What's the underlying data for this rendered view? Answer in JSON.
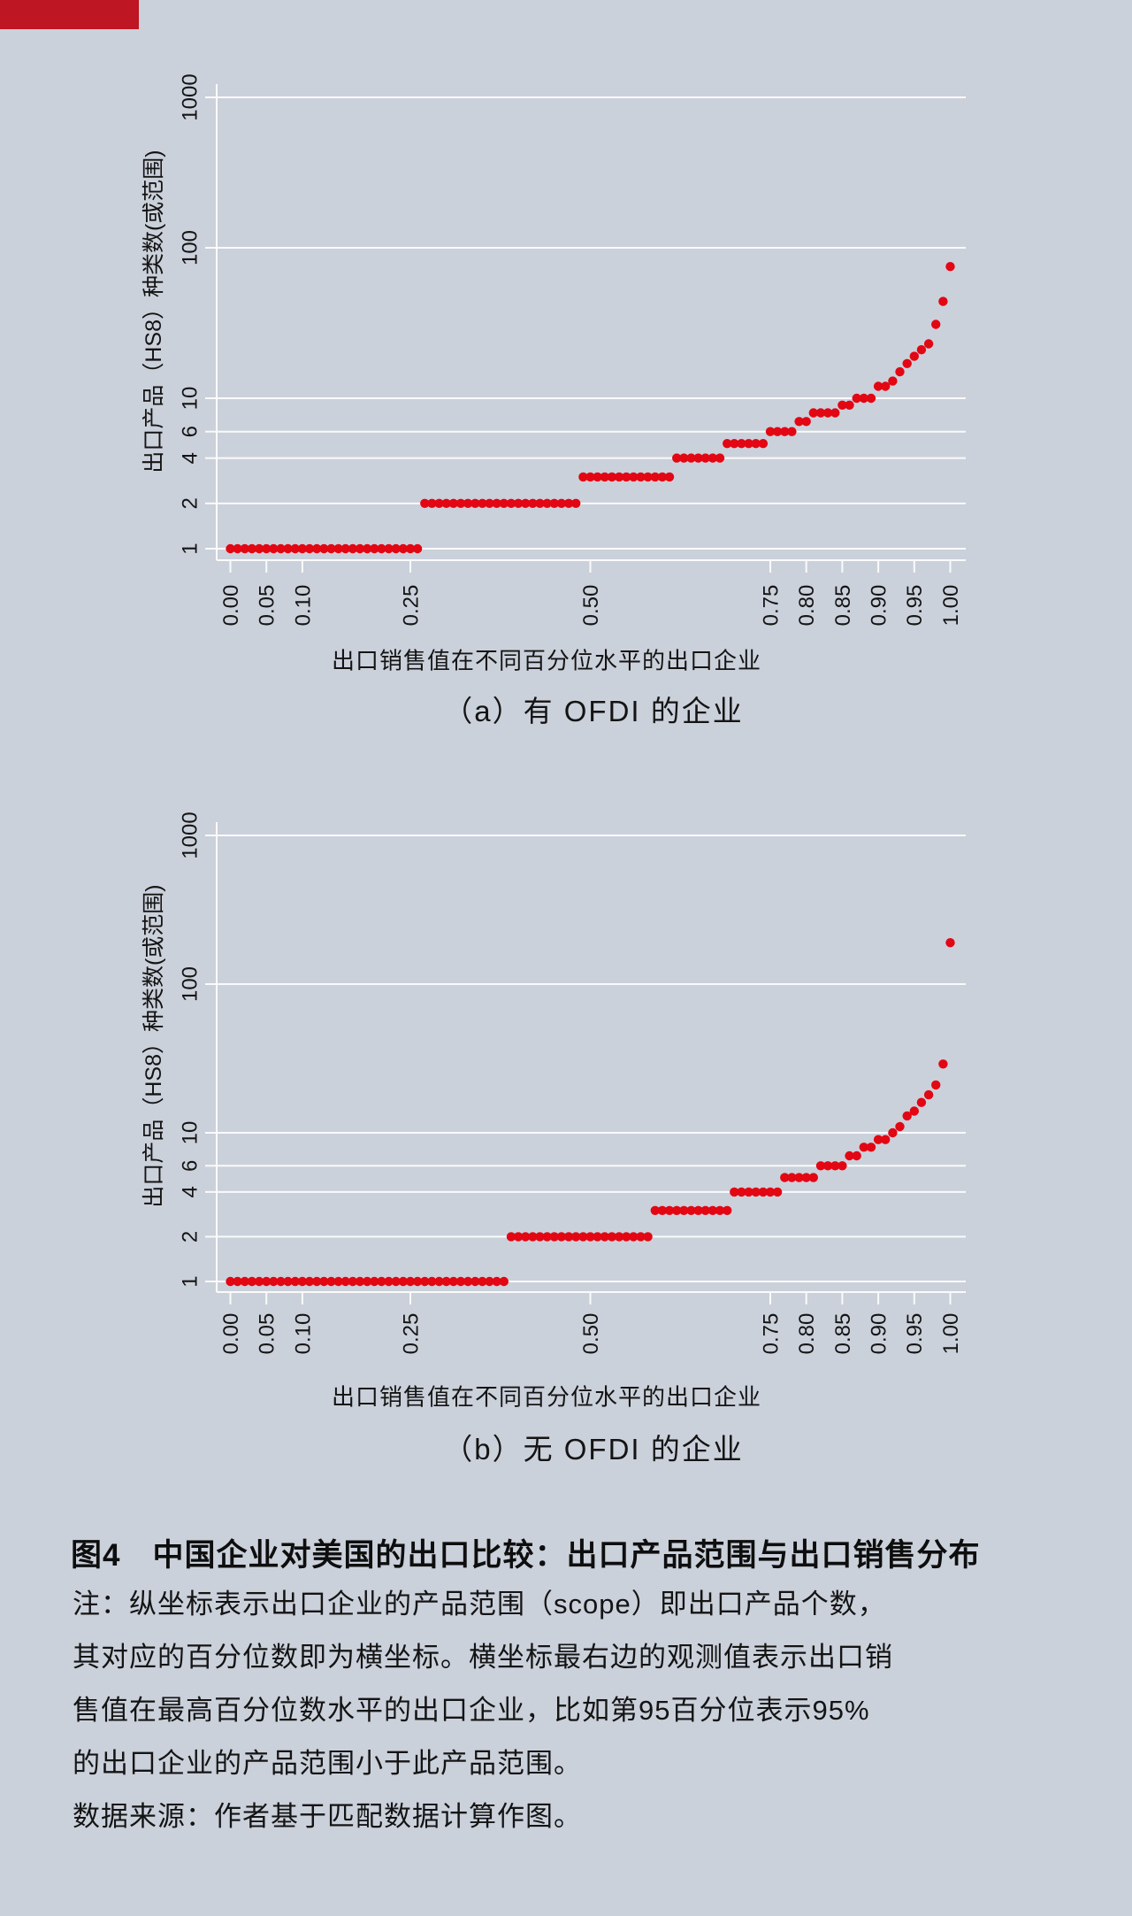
{
  "page": {
    "background_color": "#CBD1DB",
    "accent_bar_color": "#BE1622",
    "dot_color": "#E30613",
    "grid_color": "#FAFAFA",
    "text_color": "#141414"
  },
  "chart_data": [
    {
      "type": "scatter",
      "title": "（a）有 OFDI 的企业",
      "xlabel": "出口销售值在不同百分位水平的出口企业",
      "ylabel": "出口产品（HS8）种类数(或范围)",
      "yscale": "log",
      "ylim": [
        1,
        1000
      ],
      "xlim": [
        0.0,
        1.0
      ],
      "x_step": 0.01,
      "grid": "horizontal",
      "legend": "none",
      "yticks": [
        1,
        2,
        4,
        6,
        10,
        100,
        1000
      ],
      "xticks": [
        0.0,
        0.05,
        0.1,
        0.25,
        0.5,
        0.75,
        0.8,
        0.85,
        0.9,
        0.95,
        1.0
      ],
      "xtick_labels": [
        "0.00",
        "0.05",
        "0.10",
        "0.25",
        "0.50",
        "0.75",
        "0.80",
        "0.85",
        "0.90",
        "0.95",
        "1.00"
      ],
      "steps_percentile_range_value": [
        [
          0.0,
          0.26,
          1
        ],
        [
          0.27,
          0.48,
          2
        ],
        [
          0.49,
          0.61,
          3
        ],
        [
          0.62,
          0.68,
          4
        ],
        [
          0.69,
          0.74,
          5
        ],
        [
          0.75,
          0.78,
          6
        ],
        [
          0.79,
          0.8,
          7
        ],
        [
          0.81,
          0.84,
          8
        ],
        [
          0.85,
          0.86,
          9
        ],
        [
          0.87,
          0.89,
          10
        ],
        [
          0.9,
          0.91,
          12
        ],
        [
          0.92,
          0.92,
          13
        ],
        [
          0.93,
          0.93,
          15
        ],
        [
          0.94,
          0.94,
          17
        ],
        [
          0.95,
          0.95,
          19
        ],
        [
          0.96,
          0.96,
          21
        ],
        [
          0.97,
          0.97,
          23
        ],
        [
          0.98,
          0.98,
          31
        ],
        [
          0.99,
          0.99,
          44
        ],
        [
          1.0,
          1.0,
          75
        ]
      ]
    },
    {
      "type": "scatter",
      "title": "（b）无 OFDI 的企业",
      "xlabel": "出口销售值在不同百分位水平的出口企业",
      "ylabel": "出口产品（HS8）种类数(或范围)",
      "yscale": "log",
      "ylim": [
        1,
        1000
      ],
      "xlim": [
        0.0,
        1.0
      ],
      "x_step": 0.01,
      "grid": "horizontal",
      "legend": "none",
      "yticks": [
        1,
        2,
        4,
        6,
        10,
        100,
        1000
      ],
      "xticks": [
        0.0,
        0.05,
        0.1,
        0.25,
        0.5,
        0.75,
        0.8,
        0.85,
        0.9,
        0.95,
        1.0
      ],
      "xtick_labels": [
        "0.00",
        "0.05",
        "0.10",
        "0.25",
        "0.50",
        "0.75",
        "0.80",
        "0.85",
        "0.90",
        "0.95",
        "1.00"
      ],
      "steps_percentile_range_value": [
        [
          0.0,
          0.38,
          1
        ],
        [
          0.39,
          0.58,
          2
        ],
        [
          0.59,
          0.69,
          3
        ],
        [
          0.7,
          0.76,
          4
        ],
        [
          0.77,
          0.81,
          5
        ],
        [
          0.82,
          0.85,
          6
        ],
        [
          0.86,
          0.87,
          7
        ],
        [
          0.88,
          0.89,
          8
        ],
        [
          0.9,
          0.91,
          9
        ],
        [
          0.92,
          0.92,
          10
        ],
        [
          0.93,
          0.93,
          11
        ],
        [
          0.94,
          0.94,
          13
        ],
        [
          0.95,
          0.95,
          14
        ],
        [
          0.96,
          0.96,
          16
        ],
        [
          0.97,
          0.97,
          18
        ],
        [
          0.98,
          0.98,
          21
        ],
        [
          0.99,
          0.99,
          29
        ],
        [
          1.0,
          1.0,
          190
        ]
      ]
    }
  ],
  "caption": "图4　中国企业对美国的出口比较：出口产品范围与出口销售分布",
  "notes": [
    "注：纵坐标表示出口企业的产品范围（scope）即出口产品个数，",
    "其对应的百分位数即为横坐标。横坐标最右边的观测值表示出口销",
    "售值在最高百分位数水平的出口企业，比如第95百分位表示95%",
    "的出口企业的产品范围小于此产品范围。",
    "数据来源：作者基于匹配数据计算作图。"
  ]
}
